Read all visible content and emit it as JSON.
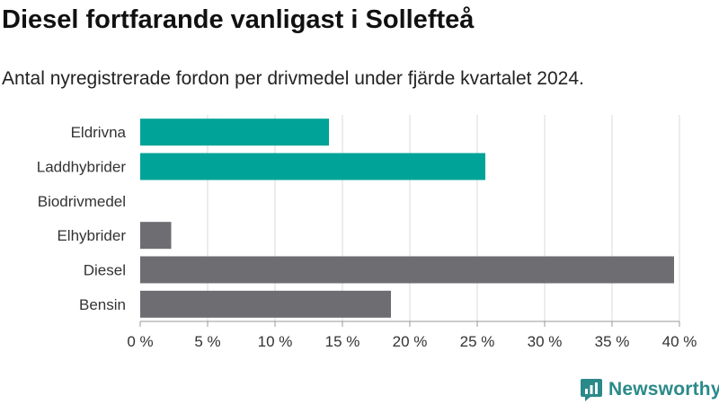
{
  "title": "Diesel fortfarande vanligast i Sollefteå",
  "subtitle": "Antal nyregistrerade fordon per drivmedel under fjärde kvartalet 2024.",
  "brand": {
    "name": "Newsworthy",
    "icon": "newsworthy-logo-icon"
  },
  "chart_data": {
    "type": "bar",
    "orientation": "horizontal",
    "categories": [
      "Eldrivna",
      "Laddhybrider",
      "Biodrivmedel",
      "Elhybrider",
      "Diesel",
      "Bensin"
    ],
    "values": [
      14.0,
      25.6,
      0,
      2.3,
      39.6,
      18.6
    ],
    "colors": [
      "#00a398",
      "#00a398",
      "#00a398",
      "#6e6d72",
      "#6e6d72",
      "#6e6d72"
    ],
    "xlim": [
      0,
      40
    ],
    "xticks": [
      0,
      5,
      10,
      15,
      20,
      25,
      30,
      35,
      40
    ],
    "xtick_labels": [
      "0 %",
      "5 %",
      "10 %",
      "15 %",
      "20 %",
      "25 %",
      "30 %",
      "35 %",
      "40 %"
    ],
    "grid": true
  }
}
